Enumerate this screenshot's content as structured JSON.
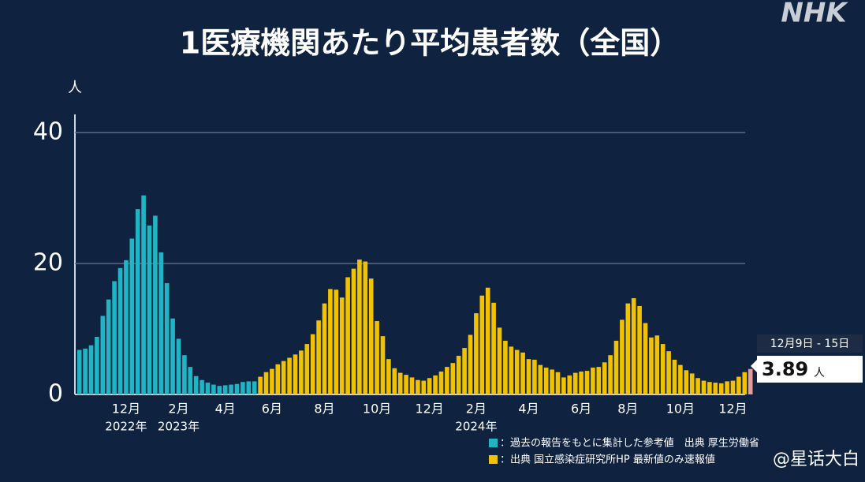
{
  "chart_data": {
    "type": "bar",
    "title": "1医療機関あたり平均患者数（全国）",
    "logo": "NHK",
    "watermark": "@星话大白",
    "y_label": "人",
    "ylim": [
      0,
      42.5
    ],
    "yticks": [
      0,
      20,
      40
    ],
    "grid": true,
    "categories": [
      null,
      null,
      null,
      null,
      null,
      null,
      null,
      null,
      "12月",
      null,
      null,
      null,
      null,
      null,
      null,
      null,
      null,
      "2月",
      null,
      null,
      null,
      null,
      null,
      null,
      null,
      "4月",
      null,
      null,
      null,
      null,
      null,
      null,
      null,
      "6月",
      null,
      null,
      null,
      null,
      null,
      null,
      null,
      null,
      "8月",
      null,
      null,
      null,
      null,
      null,
      null,
      null,
      null,
      "10月",
      null,
      null,
      null,
      null,
      null,
      null,
      null,
      null,
      "12月",
      null,
      null,
      null,
      null,
      null,
      null,
      null,
      "2月",
      null,
      null,
      null,
      null,
      null,
      null,
      null,
      null,
      "4月",
      null,
      null,
      null,
      null,
      null,
      null,
      null,
      null,
      "6月",
      null,
      null,
      null,
      null,
      null,
      null,
      null,
      "8月",
      null,
      null,
      null,
      null,
      null,
      null,
      null,
      null,
      "10月",
      null,
      null,
      null,
      null,
      null,
      null,
      null,
      null,
      "12月",
      null,
      null,
      null
    ],
    "year_labels": [
      null,
      null,
      null,
      null,
      null,
      null,
      null,
      null,
      "2022年",
      null,
      null,
      null,
      null,
      null,
      null,
      null,
      null,
      "2023年",
      null,
      null,
      null,
      null,
      null,
      null,
      null,
      null,
      null,
      null,
      null,
      null,
      null,
      null,
      null,
      null,
      null,
      null,
      null,
      null,
      null,
      null,
      null,
      null,
      null,
      null,
      null,
      null,
      null,
      null,
      null,
      null,
      null,
      null,
      null,
      null,
      null,
      null,
      null,
      null,
      null,
      null,
      null,
      null,
      null,
      null,
      null,
      null,
      null,
      null,
      "2024年",
      null,
      null,
      null,
      null,
      null,
      null,
      null,
      null,
      null,
      null,
      null,
      null,
      null,
      null,
      null,
      null,
      null,
      null,
      null,
      null,
      null,
      null,
      null,
      null,
      null,
      null,
      null,
      null,
      null,
      null,
      null,
      null,
      null,
      null,
      null,
      null,
      null,
      null,
      null,
      null,
      null,
      null,
      null,
      null,
      null,
      null,
      null
    ],
    "series": [
      {
        "name": "：過去の報告をもとに集計した参考値　出典 厚生労働省",
        "color": "#1fb5c4",
        "values": [
          6.8,
          7,
          7.5,
          8.8,
          12,
          14.5,
          17.3,
          19.3,
          20.5,
          23.8,
          28.3,
          30.4,
          25.8,
          27.3,
          21.7,
          17,
          11.6,
          8.5,
          6,
          4.2,
          2.8,
          2.2,
          1.8,
          1.5,
          1.3,
          1.4,
          1.5,
          1.6,
          1.9,
          2,
          2,
          null,
          null,
          null,
          null,
          null,
          null,
          null,
          null,
          null,
          null,
          null,
          null,
          null,
          null,
          null,
          null,
          null,
          null,
          null,
          null,
          null,
          null,
          null,
          null,
          null,
          null,
          null,
          null,
          null,
          null,
          null,
          null,
          null,
          null,
          null,
          null,
          null,
          null,
          null,
          null,
          null,
          null,
          null,
          null,
          null,
          null,
          null,
          null,
          null,
          null,
          null,
          null,
          null,
          null,
          null,
          null,
          null,
          null,
          null,
          null,
          null,
          null,
          null,
          null,
          null,
          null,
          null,
          null,
          null,
          null,
          null,
          null,
          null,
          null,
          null,
          null,
          null,
          null,
          null,
          null,
          null,
          null,
          null,
          null,
          null
        ]
      },
      {
        "name": "：出典 国立感染症研究所HP 最新値のみ速報値",
        "color": "#f2c200",
        "values": [
          null,
          null,
          null,
          null,
          null,
          null,
          null,
          null,
          null,
          null,
          null,
          null,
          null,
          null,
          null,
          null,
          null,
          null,
          null,
          null,
          null,
          null,
          null,
          null,
          null,
          null,
          null,
          null,
          null,
          null,
          null,
          2.7,
          3.4,
          3.9,
          4.6,
          5.1,
          5.6,
          6.1,
          6.7,
          7.7,
          9.2,
          11.3,
          13.9,
          16.1,
          16,
          14.8,
          17.9,
          19.2,
          20.6,
          20.3,
          17.7,
          11.2,
          8.9,
          5.4,
          4,
          3.3,
          3,
          2.6,
          2.2,
          2.1,
          2.5,
          2.9,
          3.5,
          4.2,
          4.8,
          5.9,
          7.1,
          9.1,
          12.4,
          15.1,
          16.3,
          14,
          10.2,
          8.2,
          7.3,
          6.8,
          6.4,
          5.4,
          5.3,
          4.5,
          4.1,
          3.8,
          3.4,
          2.6,
          2.9,
          3.3,
          3.5,
          3.6,
          4.1,
          4.2,
          4.9,
          6,
          8.2,
          11.4,
          13.9,
          14.7,
          13.5,
          10.9,
          8.7,
          9,
          7.7,
          6.6,
          5.3,
          4.5,
          3.7,
          3.2,
          2.5,
          2.1,
          1.9,
          1.8,
          1.7,
          2,
          2.1,
          2.7,
          3.4,
          null
        ]
      },
      {
        "color": "#e89a9a",
        "period": "12月9日 - 15日",
        "values": [
          null,
          null,
          null,
          null,
          null,
          null,
          null,
          null,
          null,
          null,
          null,
          null,
          null,
          null,
          null,
          null,
          null,
          null,
          null,
          null,
          null,
          null,
          null,
          null,
          null,
          null,
          null,
          null,
          null,
          null,
          null,
          null,
          null,
          null,
          null,
          null,
          null,
          null,
          null,
          null,
          null,
          null,
          null,
          null,
          null,
          null,
          null,
          null,
          null,
          null,
          null,
          null,
          null,
          null,
          null,
          null,
          null,
          null,
          null,
          null,
          null,
          null,
          null,
          null,
          null,
          null,
          null,
          null,
          null,
          null,
          null,
          null,
          null,
          null,
          null,
          null,
          null,
          null,
          null,
          null,
          null,
          null,
          null,
          null,
          null,
          null,
          null,
          null,
          null,
          null,
          null,
          null,
          null,
          null,
          null,
          null,
          null,
          null,
          null,
          null,
          null,
          null,
          null,
          null,
          null,
          null,
          null,
          null,
          null,
          null,
          null,
          null,
          null,
          null,
          null,
          3.89
        ]
      }
    ]
  }
}
